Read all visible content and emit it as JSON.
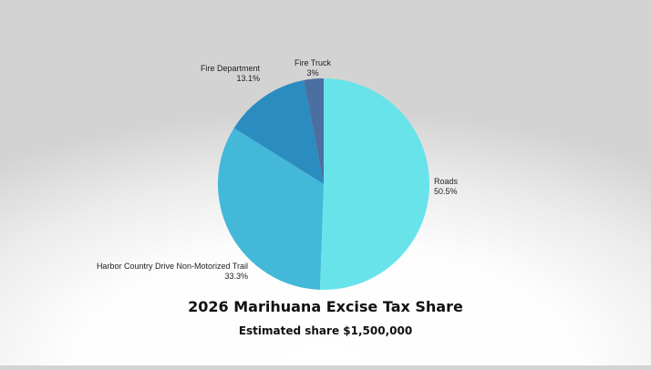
{
  "chart_data": {
    "type": "pie",
    "title": "2026 Marihuana Excise Tax Share",
    "subtitle": "Estimated share $1,500,000",
    "slices": [
      {
        "label": "Roads",
        "value": 50.5,
        "display": "50.5%",
        "color": "#69E3EA"
      },
      {
        "label": "Harbor Country Drive Non-Motorized Trail",
        "value": 33.3,
        "display": "33.3%",
        "color": "#43B8D8"
      },
      {
        "label": "Fire Department",
        "value": 13.1,
        "display": "13.1%",
        "color": "#2B8CBF"
      },
      {
        "label": "Fire Truck",
        "value": 3,
        "display": "3%",
        "color": "#4B6FA0"
      }
    ],
    "start_angle": "12 o'clock",
    "direction": "clockwise",
    "legend": "none (slice labels beside slices)"
  }
}
